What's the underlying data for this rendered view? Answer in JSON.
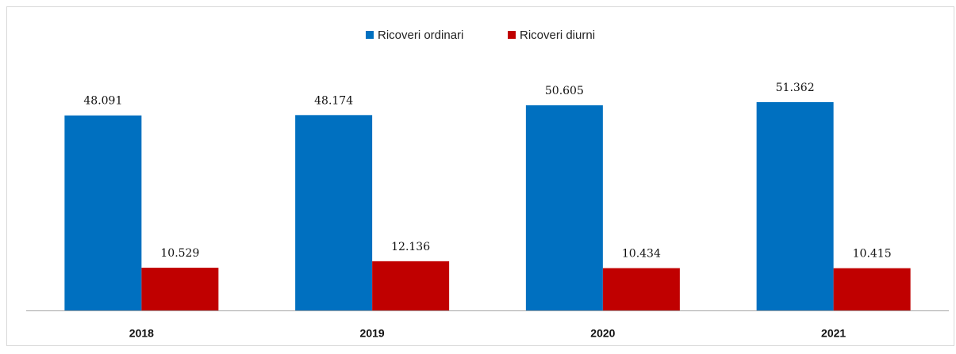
{
  "chart_data": {
    "type": "bar",
    "categories": [
      "2018",
      "2019",
      "2020",
      "2021"
    ],
    "series": [
      {
        "name": "Ricoveri ordinari",
        "color": "#0070c0",
        "values": [
          48091,
          48174,
          50605,
          51362
        ],
        "value_labels": [
          "48.091",
          "48.174",
          "50.605",
          "51.362"
        ]
      },
      {
        "name": "Ricoveri diurni",
        "color": "#c00000",
        "values": [
          10529,
          12136,
          10434,
          10415
        ],
        "value_labels": [
          "10.529",
          "12.136",
          "10.434",
          "10.415"
        ]
      }
    ]
  }
}
